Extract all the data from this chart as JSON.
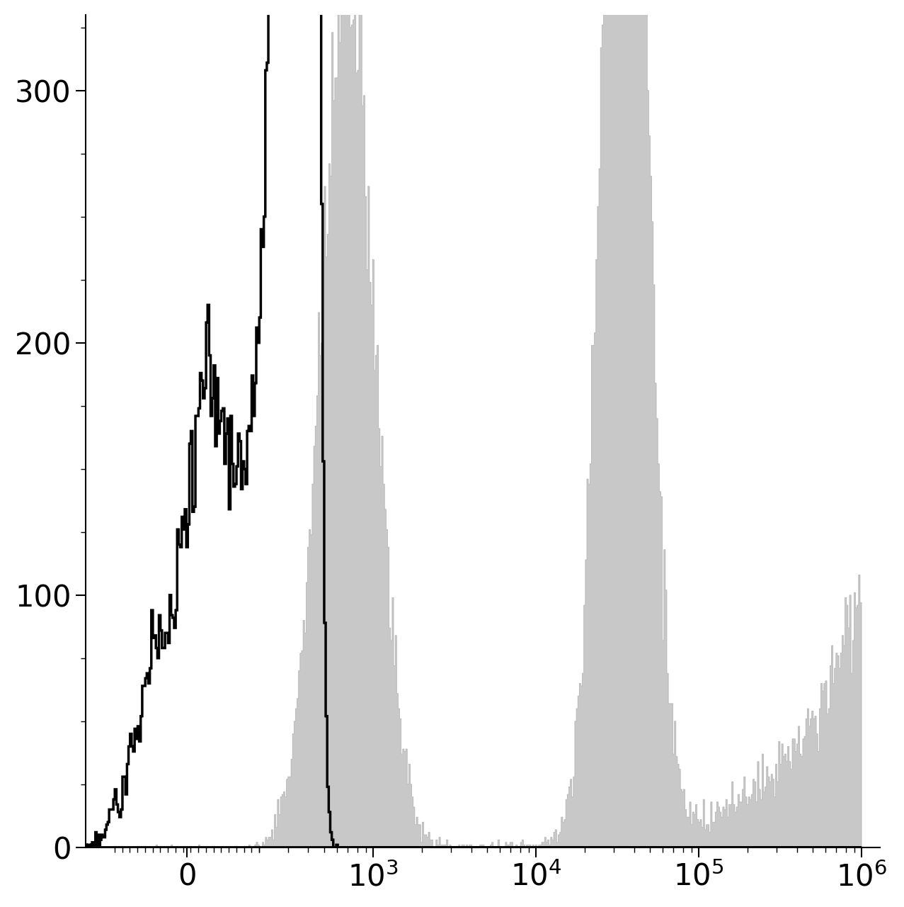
{
  "background_color": "#ffffff",
  "ylim": [
    0,
    330
  ],
  "yticks": [
    0,
    100,
    200,
    300
  ],
  "unstained_color": "#000000",
  "stained_fill_color": "#c8c8c8",
  "stained_edge_color": "#b0b0b0",
  "linewidth_unstained": 2.5,
  "linewidth_stained": 0.5,
  "seed": 42,
  "n_unstained": 80000,
  "n_stained": 40000,
  "linthresh": 200,
  "linscale": 0.4
}
